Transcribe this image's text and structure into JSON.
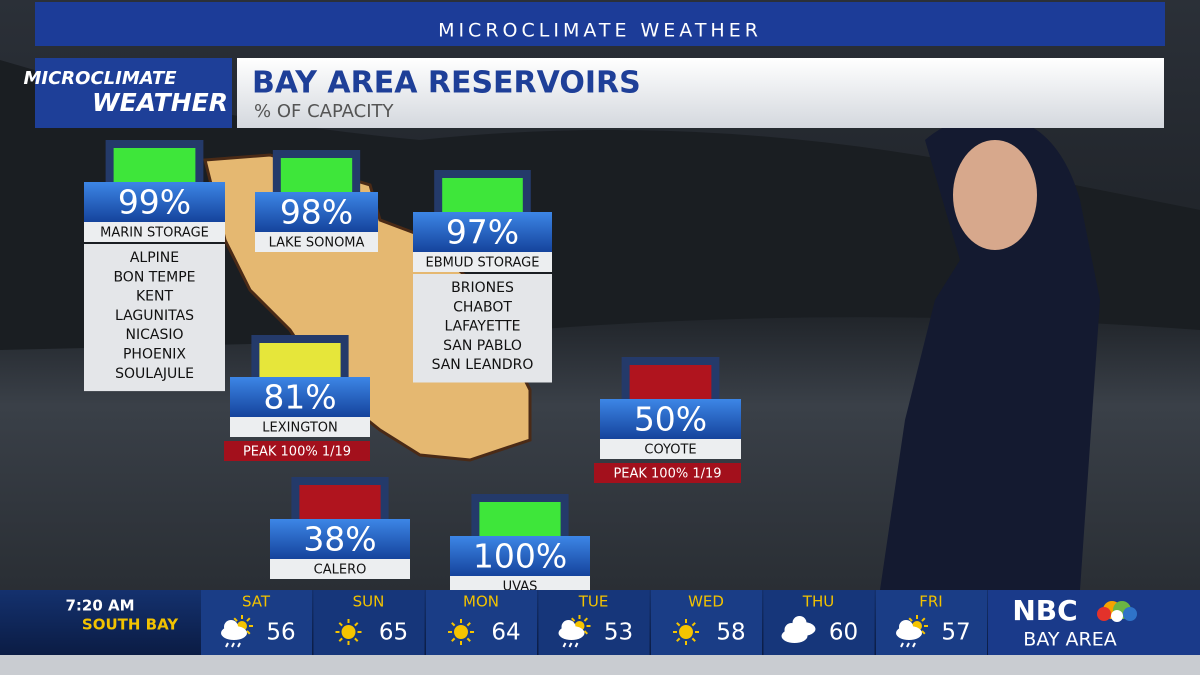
{
  "banner": "MICROCLIMATE WEATHER",
  "logo": {
    "line1": "MICROCLIMATE",
    "line2": "WEATHER"
  },
  "header": {
    "title": "BAY AREA RESERVOIRS",
    "subtitle": "% OF CAPACITY"
  },
  "reservoirs": [
    {
      "name": "MARIN STORAGE",
      "percent": "99%",
      "color": "#3ee63a",
      "members": [
        "ALPINE",
        "BON TEMPE",
        "KENT",
        "LAGUNITAS",
        "NICASIO",
        "PHOENIX",
        "SOULAJULE"
      ]
    },
    {
      "name": "LAKE SONOMA",
      "percent": "98%",
      "color": "#3ee63a"
    },
    {
      "name": "EBMUD STORAGE",
      "percent": "97%",
      "color": "#3ee63a",
      "members": [
        "BRIONES",
        "CHABOT",
        "LAFAYETTE",
        "SAN PABLO",
        "SAN LEANDRO"
      ]
    },
    {
      "name": "LEXINGTON",
      "percent": "81%",
      "color": "#e6e63a",
      "peak": "PEAK 100% 1/19"
    },
    {
      "name": "COYOTE",
      "percent": "50%",
      "color": "#b0141e",
      "peak": "PEAK 100% 1/19"
    },
    {
      "name": "CALERO",
      "percent": "38%",
      "color": "#b0141e"
    },
    {
      "name": "UVAS",
      "percent": "100%",
      "color": "#3ee63a"
    }
  ],
  "ticker": {
    "time": "7:20 AM",
    "region": "SOUTH BAY",
    "days": [
      {
        "day": "SAT",
        "icon": "sun-rain",
        "temp": 56
      },
      {
        "day": "SUN",
        "icon": "sun",
        "temp": 65
      },
      {
        "day": "MON",
        "icon": "sun",
        "temp": 64
      },
      {
        "day": "TUE",
        "icon": "sun-rain",
        "temp": 53
      },
      {
        "day": "WED",
        "icon": "sun",
        "temp": 58
      },
      {
        "day": "THU",
        "icon": "cloudy",
        "temp": 60
      },
      {
        "day": "FRI",
        "icon": "sun-rain",
        "temp": 57
      }
    ]
  },
  "brand": {
    "network": "NBC",
    "market": "BAY AREA"
  }
}
